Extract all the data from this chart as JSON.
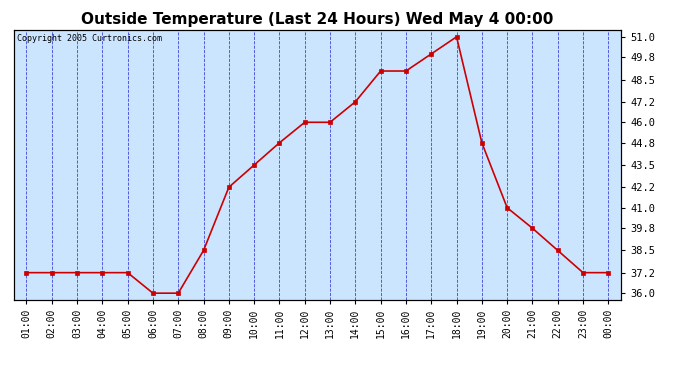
{
  "title": "Outside Temperature (Last 24 Hours) Wed May 4 00:00",
  "copyright": "Copyright 2005 Curtronics.com",
  "x_labels": [
    "01:00",
    "02:00",
    "03:00",
    "04:00",
    "05:00",
    "06:00",
    "07:00",
    "08:00",
    "09:00",
    "10:00",
    "11:00",
    "12:00",
    "13:00",
    "14:00",
    "15:00",
    "16:00",
    "17:00",
    "18:00",
    "19:00",
    "20:00",
    "21:00",
    "22:00",
    "23:00",
    "00:00"
  ],
  "y_values": [
    37.2,
    37.2,
    37.2,
    37.2,
    37.2,
    36.0,
    36.0,
    38.5,
    42.2,
    43.5,
    44.8,
    46.0,
    46.0,
    47.2,
    49.0,
    49.0,
    50.0,
    51.0,
    44.8,
    41.0,
    39.8,
    38.5,
    37.2,
    37.2
  ],
  "y_ticks": [
    36.0,
    37.2,
    38.5,
    39.8,
    41.0,
    42.2,
    43.5,
    44.8,
    46.0,
    47.2,
    48.5,
    49.8,
    51.0
  ],
  "ylim": [
    35.6,
    51.4
  ],
  "line_color": "#cc0000",
  "marker_color": "#cc0000",
  "plot_bg_color": "#cce5ff",
  "grid_color": "#0000cc",
  "title_fontsize": 11,
  "tick_fontsize": 7,
  "ytick_fontsize": 7.5
}
